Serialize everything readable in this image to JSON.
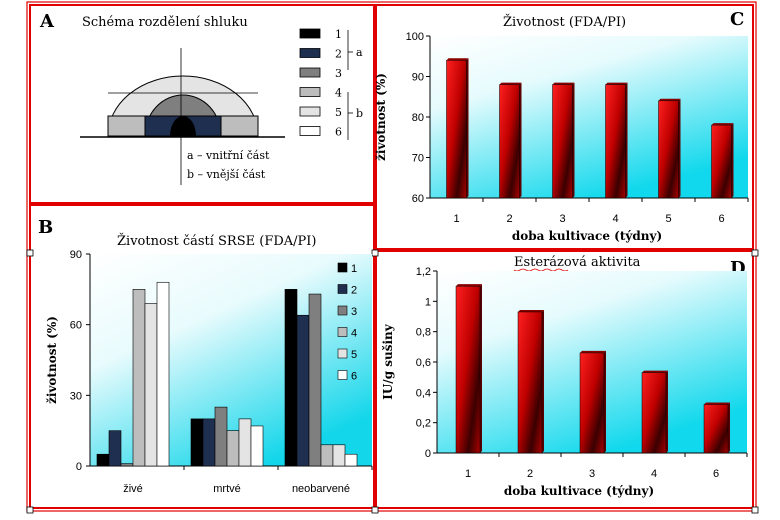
{
  "colors": {
    "border_red": "#e00000",
    "bar_red_light": "#ff1a1a",
    "bar_red_dark": "#3a0000",
    "plot_bg_top": "#ffffff",
    "plot_bg_bottom": "#11d8ec",
    "shade_1": "#000000",
    "shade_2": "#1f2f4f",
    "shade_3": "#7f7f7f",
    "shade_4": "#bdbdbd",
    "shade_5": "#e4e4e4",
    "shade_6": "#ffffff"
  },
  "panel_a": {
    "letter": "A",
    "title": "Schéma rozdělení shluku",
    "legend": [
      "1",
      "2",
      "3",
      "4",
      "5",
      "6"
    ],
    "group_a": "a",
    "group_b": "b",
    "note_a": "a – vnitřní část",
    "note_b": "b – vnější část"
  },
  "chart_data": [
    {
      "id": "B",
      "type": "bar",
      "letter": "B",
      "title": "Životnost částí SRSE (FDA/PI)",
      "xlabel": "",
      "ylabel": "životnost (%)",
      "categories": [
        "živé",
        "mrtvé",
        "neobarvené"
      ],
      "series": [
        {
          "name": "1",
          "values": [
            5,
            20,
            75
          ]
        },
        {
          "name": "2",
          "values": [
            15,
            20,
            64
          ]
        },
        {
          "name": "3",
          "values": [
            1,
            25,
            73
          ]
        },
        {
          "name": "4",
          "values": [
            75,
            15,
            9
          ]
        },
        {
          "name": "5",
          "values": [
            69,
            20,
            9
          ]
        },
        {
          "name": "6",
          "values": [
            78,
            17,
            5
          ]
        }
      ],
      "ylim": [
        0,
        90
      ],
      "yticks": [
        "0",
        "30",
        "60",
        "90"
      ],
      "legend_position": "right"
    },
    {
      "id": "C",
      "type": "bar",
      "letter": "C",
      "title": "Životnost (FDA/PI)",
      "xlabel": "doba kultivace (týdny)",
      "ylabel": "životnost (%)",
      "categories": [
        "1",
        "2",
        "3",
        "4",
        "5",
        "6"
      ],
      "values": [
        94,
        88,
        88,
        88,
        84,
        78
      ],
      "ylim": [
        60,
        100
      ],
      "yticks": [
        "60",
        "70",
        "80",
        "90",
        "100"
      ]
    },
    {
      "id": "D",
      "type": "bar",
      "letter": "D",
      "title": "Esterázová aktivita",
      "xlabel": "doba kultivace (týdny)",
      "ylabel": "IU/g sušiny",
      "categories": [
        "1",
        "2",
        "3",
        "4",
        "6"
      ],
      "values": [
        1.1,
        0.93,
        0.66,
        0.53,
        0.32
      ],
      "ylim": [
        0,
        1.2
      ],
      "yticks": [
        "0",
        "0,2",
        "0,4",
        "0,6",
        "0,8",
        "1",
        "1,2"
      ]
    }
  ]
}
